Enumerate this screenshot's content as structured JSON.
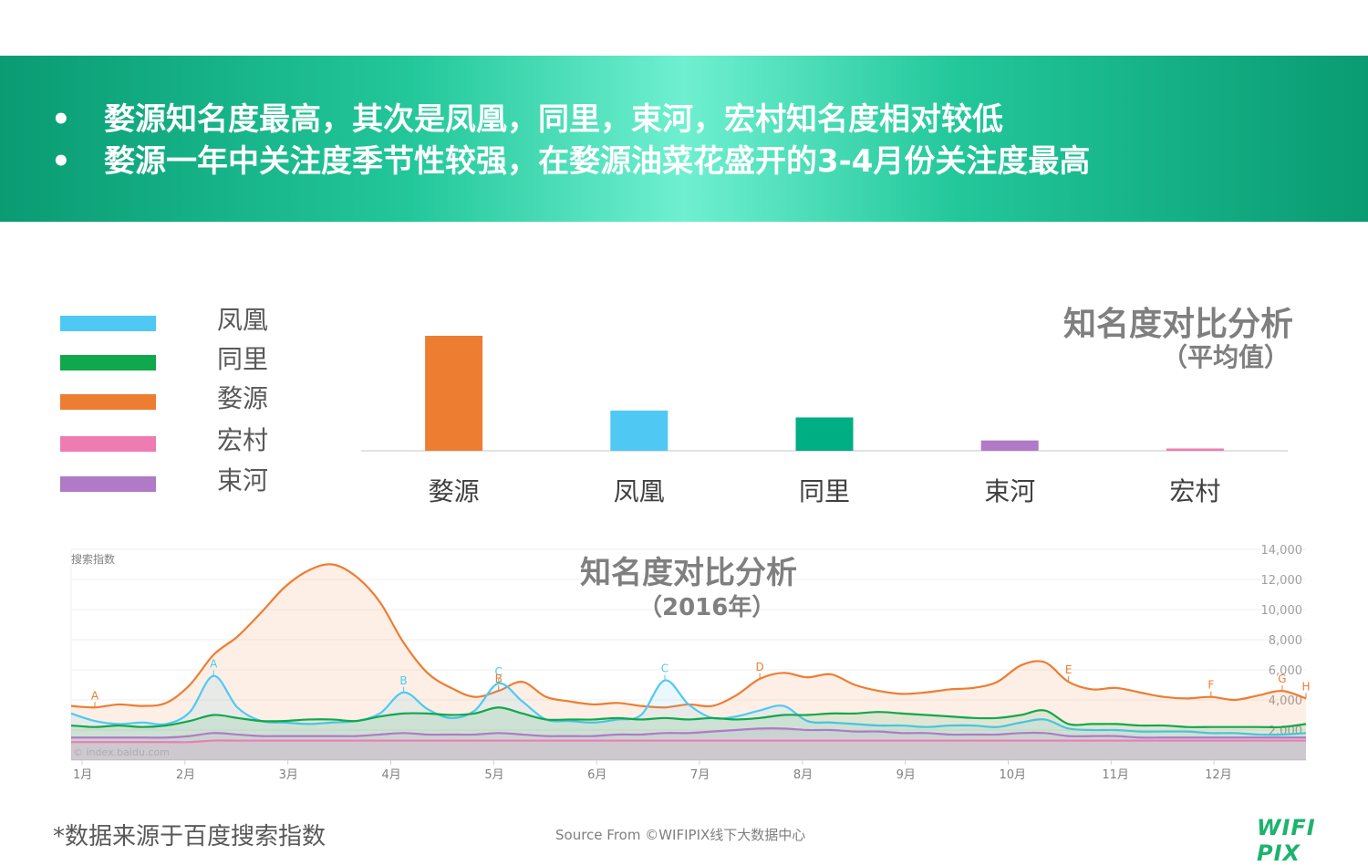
{
  "banner": {
    "bullets": [
      {
        "symbol": "•",
        "text": "婺源知名度最高，其次是凤凰，同里，束河，宏村知名度相对较低"
      },
      {
        "symbol": "•",
        "text": "婺源一年中关注度季节性较强，在婺源油菜花盛开的3-4月份关注度最高"
      }
    ]
  },
  "legend": [
    {
      "label": "凤凰",
      "color": "#4fc9f3"
    },
    {
      "label": "同里",
      "color": "#10a84c"
    },
    {
      "label": "婺源",
      "color": "#ed7d31"
    },
    {
      "label": "宏村",
      "color": "#ee7cb3"
    },
    {
      "label": "束河",
      "color": "#b07ac6"
    }
  ],
  "footnote": "*数据来源于百度搜索指数",
  "source": "Source From ©WIFIPIX线下大数据中心",
  "logo": "WIFI PIX",
  "chart_data": [
    {
      "type": "bar",
      "title": "知名度对比分析",
      "subtitle": "（平均值）",
      "categories": [
        "婺源",
        "凤凰",
        "同里",
        "束河",
        "宏村"
      ],
      "values": [
        100,
        35,
        29,
        9,
        2
      ],
      "colors": [
        "#ed7d31",
        "#4fc9f3",
        "#00ae84",
        "#b07ac6",
        "#ee7cb3"
      ],
      "ylim": [
        0,
        100
      ],
      "grid": false
    },
    {
      "type": "area",
      "title": "知名度对比分析",
      "subtitle": "（2016年）",
      "ylabel": "搜索指数",
      "watermark": "© index.baidu.com",
      "ylim": [
        0,
        14000
      ],
      "yticks": [
        "2,000",
        "4,000",
        "6,000",
        "8,000",
        "10,000",
        "12,000",
        "14,000"
      ],
      "yticks_values": [
        2000,
        4000,
        6000,
        8000,
        10000,
        12000,
        14000
      ],
      "month_labels": [
        "1月",
        "2月",
        "3月",
        "4月",
        "5月",
        "6月",
        "7月",
        "8月",
        "9月",
        "10月",
        "11月",
        "12月"
      ],
      "x_unit": "week",
      "x": [
        0,
        1,
        2,
        3,
        4,
        5,
        6,
        7,
        8,
        9,
        10,
        11,
        12,
        13,
        14,
        15,
        16,
        17,
        18,
        19,
        20,
        21,
        22,
        23,
        24,
        25,
        26,
        27,
        28,
        29,
        30,
        31,
        32,
        33,
        34,
        35,
        36,
        37,
        38,
        39,
        40,
        41,
        42,
        43,
        44,
        45,
        46,
        47,
        48,
        49,
        50,
        51,
        52
      ],
      "series": [
        {
          "name": "婺源",
          "color": "#ed7d31",
          "values": [
            3600,
            3500,
            3700,
            3600,
            3800,
            5000,
            7000,
            8200,
            9800,
            11500,
            12600,
            13000,
            12200,
            10500,
            7800,
            5800,
            4800,
            4200,
            4600,
            5200,
            4200,
            3900,
            3700,
            3800,
            3600,
            3500,
            3700,
            3600,
            4300,
            5400,
            5800,
            5500,
            5700,
            5000,
            4600,
            4400,
            4500,
            4700,
            4800,
            5200,
            6300,
            6500,
            5200,
            4700,
            4800,
            4500,
            4200,
            4100,
            4200,
            4000,
            4300,
            4600,
            4100
          ]
        },
        {
          "name": "凤凰",
          "color": "#4fc9f3",
          "values": [
            3100,
            2600,
            2400,
            2500,
            2400,
            3200,
            5600,
            3500,
            2600,
            2500,
            2400,
            2500,
            2600,
            3100,
            4500,
            3400,
            2800,
            3300,
            5100,
            3900,
            2700,
            2600,
            2500,
            2700,
            3000,
            5300,
            3700,
            2800,
            2900,
            3300,
            3600,
            2600,
            2500,
            2400,
            2300,
            2300,
            2200,
            2300,
            2300,
            2200,
            2500,
            2700,
            2100,
            2000,
            2000,
            1900,
            1900,
            1900,
            1800,
            1800,
            1700,
            1700,
            1800
          ]
        },
        {
          "name": "同里",
          "color": "#10a84c",
          "values": [
            2300,
            2200,
            2300,
            2200,
            2300,
            2600,
            3000,
            2800,
            2600,
            2600,
            2700,
            2700,
            2600,
            2900,
            3100,
            3100,
            3000,
            3100,
            3500,
            3100,
            2700,
            2700,
            2700,
            2800,
            2700,
            2800,
            2700,
            2800,
            2700,
            2800,
            3000,
            3000,
            3100,
            3100,
            3200,
            3100,
            3000,
            2900,
            2800,
            2800,
            3000,
            3300,
            2400,
            2400,
            2400,
            2300,
            2300,
            2200,
            2200,
            2200,
            2200,
            2200,
            2400
          ]
        },
        {
          "name": "束河",
          "color": "#b07ac6",
          "values": [
            1500,
            1500,
            1500,
            1500,
            1500,
            1600,
            1800,
            1700,
            1600,
            1600,
            1600,
            1600,
            1600,
            1700,
            1800,
            1700,
            1700,
            1700,
            1800,
            1700,
            1600,
            1600,
            1600,
            1700,
            1700,
            1800,
            1800,
            1900,
            2000,
            2100,
            2100,
            2000,
            2000,
            1900,
            1900,
            1800,
            1800,
            1700,
            1700,
            1700,
            1800,
            1800,
            1600,
            1600,
            1600,
            1500,
            1500,
            1500,
            1500,
            1500,
            1500,
            1500,
            1500
          ]
        },
        {
          "name": "宏村",
          "color": "#ee7cb3",
          "values": [
            1200,
            1200,
            1200,
            1200,
            1200,
            1200,
            1300,
            1300,
            1300,
            1300,
            1300,
            1300,
            1300,
            1300,
            1300,
            1300,
            1300,
            1300,
            1300,
            1300,
            1300,
            1300,
            1300,
            1300,
            1300,
            1300,
            1300,
            1300,
            1300,
            1300,
            1300,
            1300,
            1300,
            1300,
            1300,
            1300,
            1300,
            1300,
            1300,
            1300,
            1300,
            1300,
            1300,
            1300,
            1300,
            1300,
            1300,
            1300,
            1300,
            1300,
            1300,
            1300,
            1300
          ]
        }
      ],
      "annotations": [
        {
          "label": "A",
          "x": 1,
          "series": 0
        },
        {
          "label": "A",
          "x": 6,
          "series": 1
        },
        {
          "label": "B",
          "x": 14,
          "series": 1
        },
        {
          "label": "C",
          "x": 18,
          "series": 1
        },
        {
          "label": "B",
          "x": 18,
          "series": 0
        },
        {
          "label": "C",
          "x": 25,
          "series": 1
        },
        {
          "label": "D",
          "x": 29,
          "series": 0
        },
        {
          "label": "E",
          "x": 42,
          "series": 0
        },
        {
          "label": "F",
          "x": 48,
          "series": 0
        },
        {
          "label": "G",
          "x": 51,
          "series": 0
        },
        {
          "label": "H",
          "x": 52,
          "series": 0
        }
      ]
    }
  ]
}
